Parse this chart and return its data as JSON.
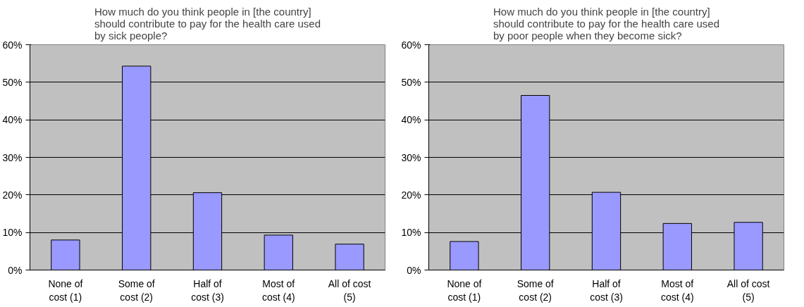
{
  "chart_data": [
    {
      "type": "bar",
      "title": "How much do you think people in [the country]\nshould contribute to pay for the health care used\nby sick people?",
      "categories": [
        "None of\ncost (1)",
        "Some of\ncost (2)",
        "Half of\ncost (3)",
        "Most of\ncost (4)",
        "All of cost\n(5)"
      ],
      "values": [
        8.0,
        54.3,
        20.6,
        9.3,
        6.9
      ],
      "color": "#9999ff",
      "ylim": [
        0,
        60
      ],
      "yticks": [
        {
          "value": 0,
          "label": "0%"
        },
        {
          "value": 10,
          "label": "10%"
        },
        {
          "value": 20,
          "label": "20%"
        },
        {
          "value": 30,
          "label": "30%"
        },
        {
          "value": 40,
          "label": "40%"
        },
        {
          "value": 50,
          "label": "50%"
        },
        {
          "value": 60,
          "label": "60%"
        }
      ],
      "grid": "y"
    },
    {
      "type": "bar",
      "title": "How much do you think people in [the country]\nshould contribute to pay for the health care used\nby poor people when they become sick?",
      "categories": [
        "None of\ncost (1)",
        "Some of\ncost (2)",
        "Half of\ncost (3)",
        "Most of\ncost (4)",
        "All of cost\n(5)"
      ],
      "values": [
        7.6,
        46.5,
        20.7,
        12.4,
        12.7
      ],
      "color": "#9999ff",
      "ylim": [
        0,
        60
      ],
      "yticks": [
        {
          "value": 0,
          "label": "0%"
        },
        {
          "value": 10,
          "label": "10%"
        },
        {
          "value": 20,
          "label": "20%"
        },
        {
          "value": 30,
          "label": "30%"
        },
        {
          "value": 40,
          "label": "40%"
        },
        {
          "value": 50,
          "label": "50%"
        },
        {
          "value": 60,
          "label": "60%"
        }
      ],
      "grid": "y"
    }
  ]
}
